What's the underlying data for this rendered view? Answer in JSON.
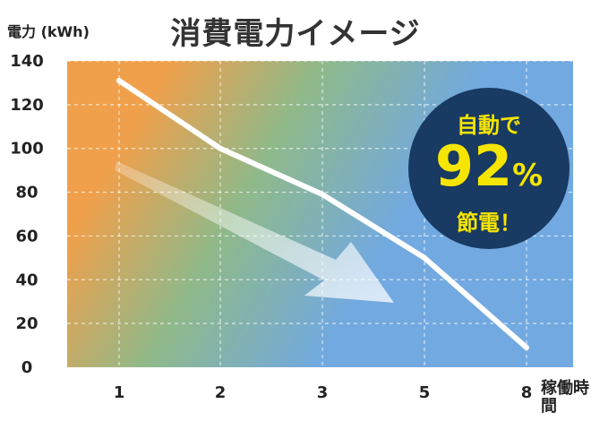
{
  "chart_data": {
    "type": "line",
    "title": "消費電力イメージ",
    "ylabel": "電力 (kWh)",
    "xlabel": "稼働時間",
    "categories": [
      "1",
      "2",
      "3",
      "5",
      "8"
    ],
    "values": [
      131,
      100,
      79,
      50,
      9
    ],
    "ylim": [
      0,
      140
    ],
    "yticks": [
      0,
      20,
      40,
      60,
      80,
      100,
      120,
      140
    ],
    "grid": true,
    "line_color": "#ffffff"
  },
  "badge": {
    "line1": "自動で",
    "value": "92",
    "unit": "%",
    "line3": "節電！"
  },
  "colors": {
    "background_left": "#f0a04b",
    "background_mid": "#8fb98a",
    "background_right": "#72a9e0",
    "badge_bg": "#183a63",
    "badge_text": "#f6e500"
  }
}
